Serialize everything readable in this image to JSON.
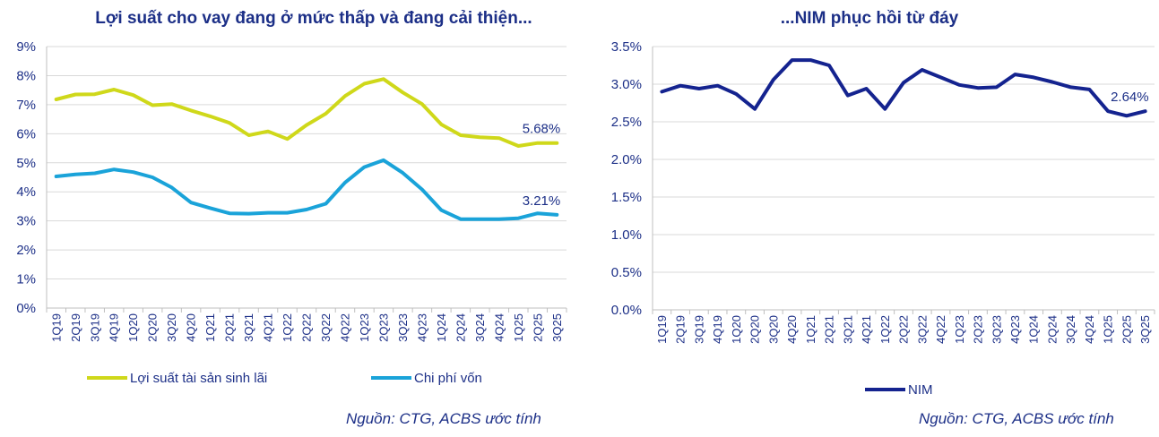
{
  "charts": [
    {
      "title": "Lợi suất cho vay đang ở mức thấp và đang cải thiện...",
      "source": "Nguồn: CTG, ACBS ước tính",
      "chart_data": {
        "type": "line",
        "title": "Lợi suất cho vay đang ở mức thấp và đang cải thiện...",
        "categories": [
          "1Q19",
          "2Q19",
          "3Q19",
          "4Q19",
          "1Q20",
          "2Q20",
          "3Q20",
          "4Q20",
          "1Q21",
          "2Q21",
          "3Q21",
          "4Q21",
          "1Q22",
          "2Q22",
          "3Q22",
          "4Q22",
          "1Q23",
          "2Q23",
          "3Q23",
          "4Q23",
          "1Q24",
          "2Q24",
          "3Q24",
          "4Q24",
          "1Q25",
          "2Q25",
          "3Q25"
        ],
        "y_ticks": [
          "0%",
          "1%",
          "2%",
          "3%",
          "4%",
          "5%",
          "6%",
          "7%",
          "8%",
          "9%"
        ],
        "ylim": [
          0,
          9
        ],
        "grid": "horizontal",
        "legend_position": "bottom",
        "series": [
          {
            "name": "Lợi suất tài sản sinh lãi",
            "color": "#cfd81a",
            "values": [
              7.18,
              7.35,
              7.36,
              7.52,
              7.33,
              6.98,
              7.02,
              6.8,
              6.6,
              6.37,
              5.95,
              6.08,
              5.82,
              6.3,
              6.69,
              7.3,
              7.72,
              7.88,
              7.42,
              7.02,
              6.32,
              5.95,
              5.88,
              5.85,
              5.58,
              5.68,
              5.68
            ],
            "end_label": "5.68%"
          },
          {
            "name": "Chi phí vốn",
            "color": "#1aa3d9",
            "values": [
              4.53,
              4.6,
              4.64,
              4.77,
              4.68,
              4.5,
              4.15,
              3.63,
              3.44,
              3.26,
              3.25,
              3.28,
              3.28,
              3.39,
              3.59,
              4.32,
              4.85,
              5.09,
              4.65,
              4.08,
              3.37,
              3.06,
              3.06,
              3.06,
              3.09,
              3.26,
              3.21
            ],
            "end_label": "3.21%"
          }
        ]
      }
    },
    {
      "title": "...NIM phục hồi từ đáy",
      "source": "Nguồn: CTG, ACBS ước tính",
      "chart_data": {
        "type": "line",
        "title": "...NIM phục hồi từ đáy",
        "categories": [
          "1Q19",
          "2Q19",
          "3Q19",
          "4Q19",
          "1Q20",
          "2Q20",
          "3Q20",
          "4Q20",
          "1Q21",
          "2Q21",
          "3Q21",
          "4Q21",
          "1Q22",
          "2Q22",
          "3Q22",
          "4Q22",
          "1Q23",
          "2Q23",
          "3Q23",
          "4Q23",
          "1Q24",
          "2Q24",
          "3Q24",
          "4Q24",
          "1Q25",
          "2Q25",
          "3Q25"
        ],
        "y_ticks": [
          "0.0%",
          "0.5%",
          "1.0%",
          "1.5%",
          "2.0%",
          "2.5%",
          "3.0%",
          "3.5%"
        ],
        "ylim": [
          0,
          3.5
        ],
        "grid": "horizontal",
        "legend_position": "bottom",
        "series": [
          {
            "name": "NIM",
            "color": "#14238f",
            "values": [
              2.9,
              2.98,
              2.94,
              2.98,
              2.87,
              2.67,
              3.06,
              3.32,
              3.32,
              3.25,
              2.85,
              2.94,
              2.67,
              3.02,
              3.19,
              3.09,
              2.99,
              2.95,
              2.96,
              3.13,
              3.09,
              3.03,
              2.96,
              2.93,
              2.64,
              2.58,
              2.64
            ],
            "end_label": "2.64%"
          }
        ]
      }
    }
  ]
}
